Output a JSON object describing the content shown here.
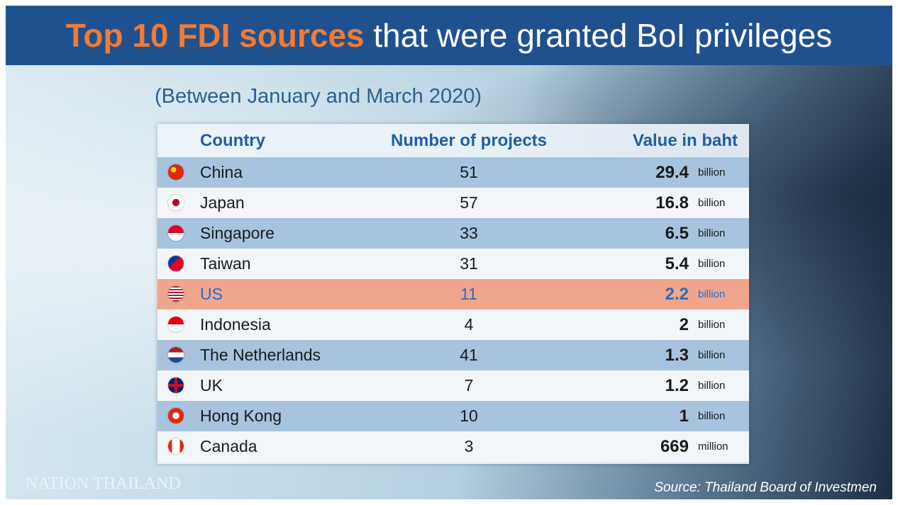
{
  "header": {
    "title_highlight": "Top 10 FDI sources",
    "title_rest": "that were granted BoI privileges",
    "subtitle": "(Between January and March 2020)"
  },
  "table": {
    "columns": [
      "Country",
      "Number of projects",
      "Value in baht"
    ],
    "rows": [
      [
        "China",
        51,
        "29.4",
        "billion"
      ],
      [
        "Japan",
        57,
        "16.8",
        "billion"
      ],
      [
        "Singapore",
        33,
        "6.5",
        "billion"
      ],
      [
        "Taiwan",
        31,
        "5.4",
        "billion"
      ],
      [
        "US",
        11,
        "2.2",
        "billion"
      ],
      [
        "Indonesia",
        4,
        "2",
        "billion"
      ],
      [
        "The Netherlands",
        41,
        "1.3",
        "billion"
      ],
      [
        "UK",
        7,
        "1.2",
        "billion"
      ],
      [
        "Hong Kong",
        10,
        "1",
        "billion"
      ],
      [
        "Canada",
        3,
        "669",
        "million"
      ]
    ]
  },
  "footer": {
    "logo": "NATION THAILAND",
    "source": "Source: Thailand Board of Investmen"
  }
}
